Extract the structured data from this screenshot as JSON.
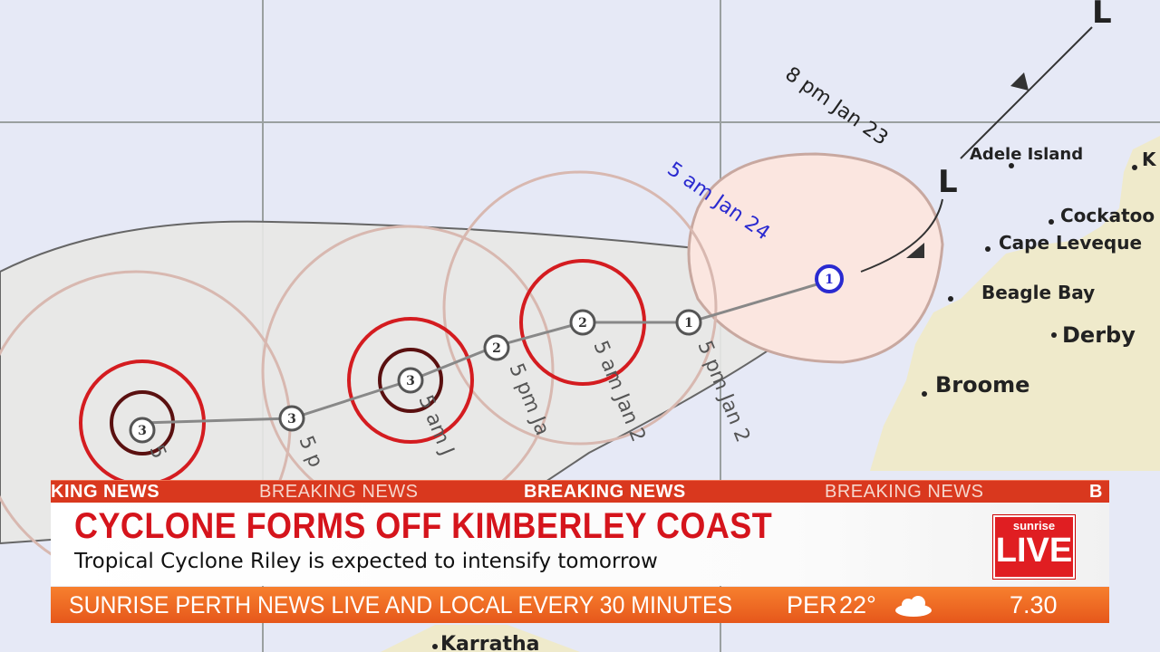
{
  "map": {
    "places": [
      {
        "name": "Adele Island"
      },
      {
        "name": "Cockatoo"
      },
      {
        "name": "Cape Leveque"
      },
      {
        "name": "Beagle Bay"
      },
      {
        "name": "Derby"
      },
      {
        "name": "Broome"
      },
      {
        "name": "Karratha"
      },
      {
        "name": "K"
      }
    ],
    "time_labels": {
      "t1": "8 pm Jan 23",
      "t2": "5 am Jan 24",
      "t3": "5 pm Jan 2",
      "t4": "5 am Jan 2",
      "t5": "5 pm Ja",
      "t6": "5 am J",
      "t7": "5 p",
      "t8": "5"
    },
    "low_symbol": "L",
    "categories": [
      "1",
      "1",
      "2",
      "2",
      "3",
      "3",
      "3"
    ],
    "colors": {
      "ocean": "#e6e9f6",
      "land": "#efeacb",
      "uncertainty": "#fbe6e0",
      "forecast_area": "#e8e8e6",
      "red_ring": "#d41c20",
      "current_position": "#2a2ad0"
    }
  },
  "ticker": {
    "items": [
      "KING NEWS",
      "BREAKING NEWS",
      "BREAKING NEWS",
      "BREAKING NEWS",
      "B"
    ]
  },
  "lower_third": {
    "headline": "CYCLONE FORMS OFF KIMBERLEY COAST",
    "subheadline": "Tropical Cyclone Riley is expected to intensify tomorrow",
    "brand": "sunrise",
    "live": "LIVE"
  },
  "bottom_bar": {
    "text": "SUNRISE PERTH NEWS LIVE AND LOCAL EVERY 30 MINUTES",
    "location": "PER",
    "temperature": "22°",
    "weather_icon": "cloud-icon",
    "time": "7.30"
  }
}
